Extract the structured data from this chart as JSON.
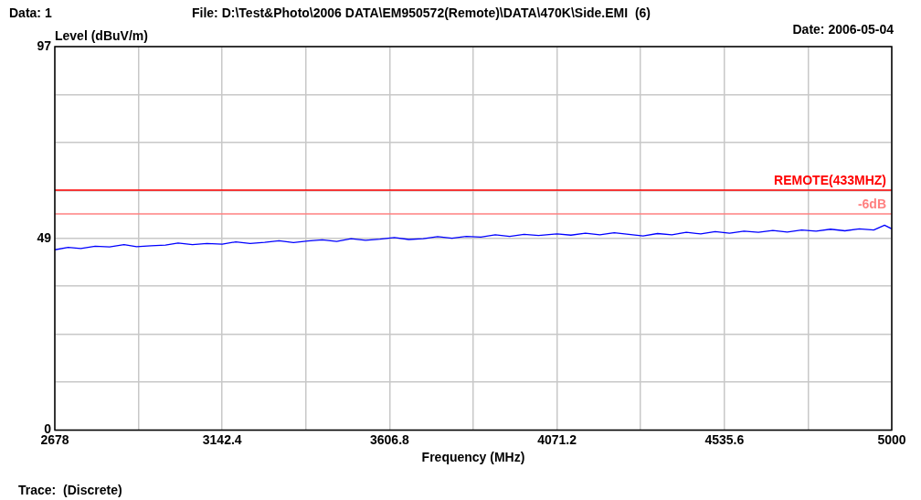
{
  "chart_data": {
    "type": "line",
    "xlabel": "Frequency (MHz)",
    "ylabel": "Level (dBuV/m)",
    "annotations": [
      "Data: 1",
      "File: D:\\Test&Photo\\2006 DATA\\EM950572(Remote)\\DATA\\470K\\Side.EMI  (6)",
      "Date: 2006-05-04",
      "Trace:  (Discrete)"
    ],
    "x": [
      2678,
      2715,
      2750,
      2790,
      2830,
      2870,
      2905,
      2945,
      2985,
      3020,
      3060,
      3100,
      3142.4,
      3180,
      3220,
      3260,
      3300,
      3340,
      3380,
      3420,
      3460,
      3500,
      3540,
      3580,
      3620,
      3660,
      3700,
      3740,
      3780,
      3820,
      3860,
      3900,
      3940,
      3980,
      4020,
      4071.2,
      4110,
      4150,
      4190,
      4230,
      4270,
      4310,
      4350,
      4390,
      4430,
      4470,
      4510,
      4550,
      4590,
      4630,
      4670,
      4710,
      4750,
      4790,
      4830,
      4870,
      4910,
      4950,
      4980,
      5000
    ],
    "series": [
      {
        "color": "#0000ff",
        "values": [
          45.6,
          46.2,
          45.9,
          46.5,
          46.3,
          46.9,
          46.4,
          46.6,
          46.8,
          47.3,
          46.9,
          47.2,
          47.0,
          47.6,
          47.2,
          47.5,
          47.9,
          47.4,
          47.8,
          48.1,
          47.7,
          48.4,
          48.0,
          48.3,
          48.7,
          48.2,
          48.4,
          48.9,
          48.5,
          49.0,
          48.8,
          49.4,
          49.0,
          49.5,
          49.2,
          49.6,
          49.3,
          49.8,
          49.4,
          49.9,
          49.5,
          49.1,
          49.7,
          49.4,
          50.0,
          49.6,
          50.2,
          49.8,
          50.3,
          50.0,
          50.5,
          50.1,
          50.6,
          50.3,
          50.8,
          50.4,
          50.9,
          50.6,
          51.8,
          50.9
        ]
      }
    ],
    "xlim": [
      2678,
      5000
    ],
    "xticks": [
      2678,
      {
        "value": 2910.2,
        "label": null
      },
      3142.4,
      {
        "value": 3374.6,
        "label": null
      },
      3606.8,
      {
        "value": 3839,
        "label": null
      },
      4071.2,
      {
        "value": 4303.4,
        "label": null
      },
      4535.6,
      {
        "value": 4767.8,
        "label": null
      },
      5000
    ],
    "ylim": [
      0,
      97
    ],
    "yticks": [
      0,
      {
        "value": 12.125,
        "label": null
      },
      {
        "value": 24.25,
        "label": null
      },
      {
        "value": 36.375,
        "label": null
      },
      {
        "value": 48.5,
        "label": "49"
      },
      {
        "value": 60.625,
        "label": null
      },
      {
        "value": 72.75,
        "label": null
      },
      {
        "value": 84.875,
        "label": null
      },
      97
    ],
    "ref_lines": [
      {
        "axis": "y",
        "value": 60.7,
        "label": "REMOTE(433MHZ)",
        "color": "#ff0000"
      },
      {
        "axis": "y",
        "value": 54.7,
        "label": "-6dB",
        "color": "#ff8080"
      }
    ],
    "grid": true,
    "legend": false,
    "marker": "none",
    "line_style": "solid"
  }
}
